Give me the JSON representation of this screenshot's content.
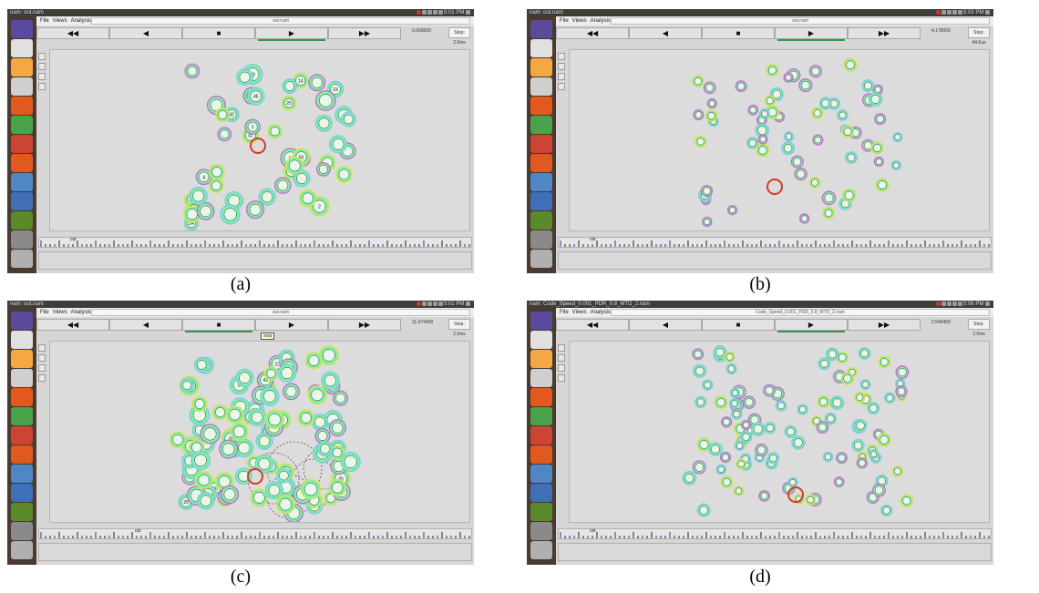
{
  "screens": [
    {
      "id": "a",
      "window_title": "nam: out.nam",
      "caption": "(a)",
      "tray_time": "5:01 PM",
      "menu": [
        "File",
        "Views",
        "Analysis"
      ],
      "title_field": "out.nam",
      "controls": {
        "rewind": "◀◀",
        "back": "◀",
        "stop": "■",
        "play": "▶",
        "forward": "▶▶",
        "active": "play"
      },
      "time_label": "0.000000",
      "step_label": "Step: 2.0ms",
      "timeline_label": "cbr",
      "tooltip": "",
      "colors": {
        "node": "#7af3a4",
        "ring_a": "#c76bd2",
        "ring_b": "#7ec6e8",
        "ring_c": "#d8df4a",
        "highlight": "#d43a2a"
      }
    },
    {
      "id": "b",
      "window_title": "nam: out.nam",
      "caption": "(b)",
      "tray_time": "5:03 PM",
      "menu": [
        "File",
        "Views",
        "Analysis"
      ],
      "title_field": "out.nam",
      "controls": {
        "rewind": "◀◀",
        "back": "◀",
        "stop": "■",
        "play": "▶",
        "forward": "▶▶",
        "active": "play"
      },
      "time_label": "4.178000",
      "step_label": "Step: 44.6us",
      "timeline_label": "cbr",
      "tooltip": ""
    },
    {
      "id": "c",
      "window_title": "nam: out.nam",
      "caption": "(c)",
      "tray_time": "5:01 PM",
      "menu": [
        "File",
        "Views",
        "Analysis"
      ],
      "title_field": "out.nam",
      "controls": {
        "rewind": "◀◀",
        "back": "◀",
        "stop": "■",
        "play": "▶",
        "forward": "▶▶",
        "active": "stop"
      },
      "time_label": "11.674400",
      "step_label": "Step: 2.0ms",
      "timeline_label": "cbr",
      "tooltip": "stop"
    },
    {
      "id": "d",
      "window_title": "nam: Code_Speed_0.001_PDR_0.8_MTD_2.nam",
      "caption": "(d)",
      "tray_time": "5:06 PM",
      "menu": [
        "File",
        "Views",
        "Analysis"
      ],
      "title_field": "Code_Speed_0.001_PDR_0.8_MTD_2.nam",
      "controls": {
        "rewind": "◀◀",
        "back": "◀",
        "stop": "■",
        "play": "▶",
        "forward": "▶▶",
        "active": "play"
      },
      "time_label": "2.546400",
      "step_label": "Step: 2.0ms",
      "timeline_label": "cbr",
      "tooltip": ""
    }
  ],
  "launcher_icons": [
    "dash-icon",
    "terminal-icon",
    "files-icon",
    "text-editor-icon",
    "firefox-icon",
    "spreadsheet-icon",
    "settings-icon",
    "software-center-icon",
    "network-icon",
    "remote-desktop-icon",
    "vim-icon",
    "drive-icon",
    "help-icon"
  ],
  "node_labels_a": [
    "24",
    "23",
    "20",
    "16",
    "4",
    "40",
    "45",
    "48",
    "39",
    "5",
    "41",
    "1",
    "14",
    "2",
    "50",
    "42"
  ],
  "node_labels_c": [
    "35",
    "20",
    "21",
    "30",
    "32",
    "41",
    "40",
    "12",
    "24",
    "28",
    "18",
    "21",
    "17",
    "19",
    "33",
    "43",
    "50",
    "8",
    "22"
  ]
}
